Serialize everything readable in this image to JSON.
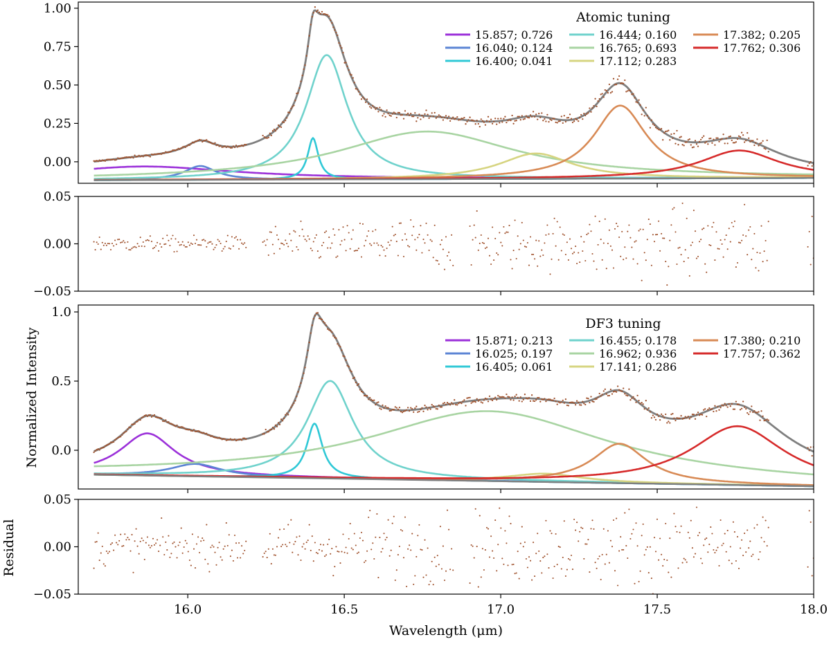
{
  "figure": {
    "xlabel": "Wavelength (μm)",
    "ylabel_top": "Normalized Intensity",
    "ylabel_bottom": "Residual",
    "x_ticks": [
      "16.0",
      "16.5",
      "17.0",
      "17.5",
      "18.0"
    ]
  },
  "colors": {
    "fit": "#7f7f7f",
    "data": "#a0522d",
    "components": [
      "#9b30d9",
      "#5b84d4",
      "#2fc8d6",
      "#6fd2cc",
      "#a8d4a2",
      "#d6d480",
      "#d88a55",
      "#d62a2a"
    ]
  },
  "chart_data": [
    {
      "type": "line",
      "title": "Atomic tuning",
      "xlim": [
        15.65,
        18.0
      ],
      "ylim": [
        -0.14,
        1.04
      ],
      "y_ticks": [
        "1.00",
        "0.75",
        "0.50",
        "0.25",
        "0.00"
      ],
      "baseline": [
        -0.12,
        -0.105
      ],
      "series": [
        {
          "name": "15.857; 0.726",
          "center": 15.857,
          "fwhm": 0.726,
          "amp": 0.088
        },
        {
          "name": "16.040; 0.124",
          "center": 16.04,
          "fwhm": 0.124,
          "amp": 0.09
        },
        {
          "name": "16.400; 0.041",
          "center": 16.4,
          "fwhm": 0.041,
          "amp": 0.27
        },
        {
          "name": "16.444; 0.160",
          "center": 16.444,
          "fwhm": 0.16,
          "amp": 0.81
        },
        {
          "name": "16.765; 0.693",
          "center": 16.765,
          "fwhm": 0.693,
          "amp": 0.31
        },
        {
          "name": "17.112; 0.283",
          "center": 17.112,
          "fwhm": 0.283,
          "amp": 0.165
        },
        {
          "name": "17.382; 0.205",
          "center": 17.382,
          "fwhm": 0.205,
          "amp": 0.475
        },
        {
          "name": "17.762; 0.306",
          "center": 17.762,
          "fwhm": 0.306,
          "amp": 0.18
        }
      ]
    },
    {
      "type": "scatter",
      "title": "",
      "ylabel": "",
      "xlim": [
        15.65,
        18.0
      ],
      "ylim": [
        -0.05,
        0.05
      ],
      "y_ticks": [
        "0.05",
        "0.00",
        "−0.05"
      ],
      "gaps": [
        [
          16.19,
          16.24
        ],
        [
          16.85,
          16.9
        ],
        [
          17.86,
          17.98
        ]
      ],
      "noise_regions": [
        {
          "from": 15.7,
          "to": 16.2,
          "spread": 0.006
        },
        {
          "from": 16.24,
          "to": 16.55,
          "spread": 0.014
        },
        {
          "from": 16.55,
          "to": 17.3,
          "spread": 0.02
        },
        {
          "from": 17.3,
          "to": 18.0,
          "spread": 0.027
        }
      ]
    },
    {
      "type": "line",
      "title": "DF3 tuning",
      "xlim": [
        15.65,
        18.0
      ],
      "ylim": [
        -0.28,
        1.05
      ],
      "y_ticks": [
        "1.0",
        "0.5",
        "0.0"
      ],
      "baseline": [
        -0.175,
        -0.26
      ],
      "series": [
        {
          "name": "15.871; 0.213",
          "center": 15.871,
          "fwhm": 0.213,
          "amp": 0.305
        },
        {
          "name": "16.025; 0.197",
          "center": 16.025,
          "fwhm": 0.197,
          "amp": 0.09
        },
        {
          "name": "16.405; 0.061",
          "center": 16.405,
          "fwhm": 0.061,
          "amp": 0.395
        },
        {
          "name": "16.455; 0.178",
          "center": 16.455,
          "fwhm": 0.178,
          "amp": 0.705
        },
        {
          "name": "16.962; 0.936",
          "center": 16.962,
          "fwhm": 0.936,
          "amp": 0.505
        },
        {
          "name": "17.141; 0.286",
          "center": 17.141,
          "fwhm": 0.286,
          "amp": 0.06
        },
        {
          "name": "17.380; 0.210",
          "center": 17.38,
          "fwhm": 0.21,
          "amp": 0.285
        },
        {
          "name": "17.757; 0.362",
          "center": 17.757,
          "fwhm": 0.362,
          "amp": 0.425
        }
      ]
    },
    {
      "type": "scatter",
      "title": "",
      "ylabel": "Residual",
      "xlim": [
        15.65,
        18.0
      ],
      "ylim": [
        -0.05,
        0.05
      ],
      "y_ticks": [
        "0.05",
        "0.00",
        "−0.05"
      ],
      "gaps": [
        [
          16.19,
          16.24
        ],
        [
          16.85,
          16.9
        ],
        [
          17.86,
          17.98
        ]
      ],
      "noise_regions": [
        {
          "from": 15.7,
          "to": 16.2,
          "spread": 0.015
        },
        {
          "from": 16.24,
          "to": 16.55,
          "spread": 0.02
        },
        {
          "from": 16.55,
          "to": 17.3,
          "spread": 0.028
        },
        {
          "from": 17.3,
          "to": 18.0,
          "spread": 0.03
        }
      ]
    }
  ]
}
